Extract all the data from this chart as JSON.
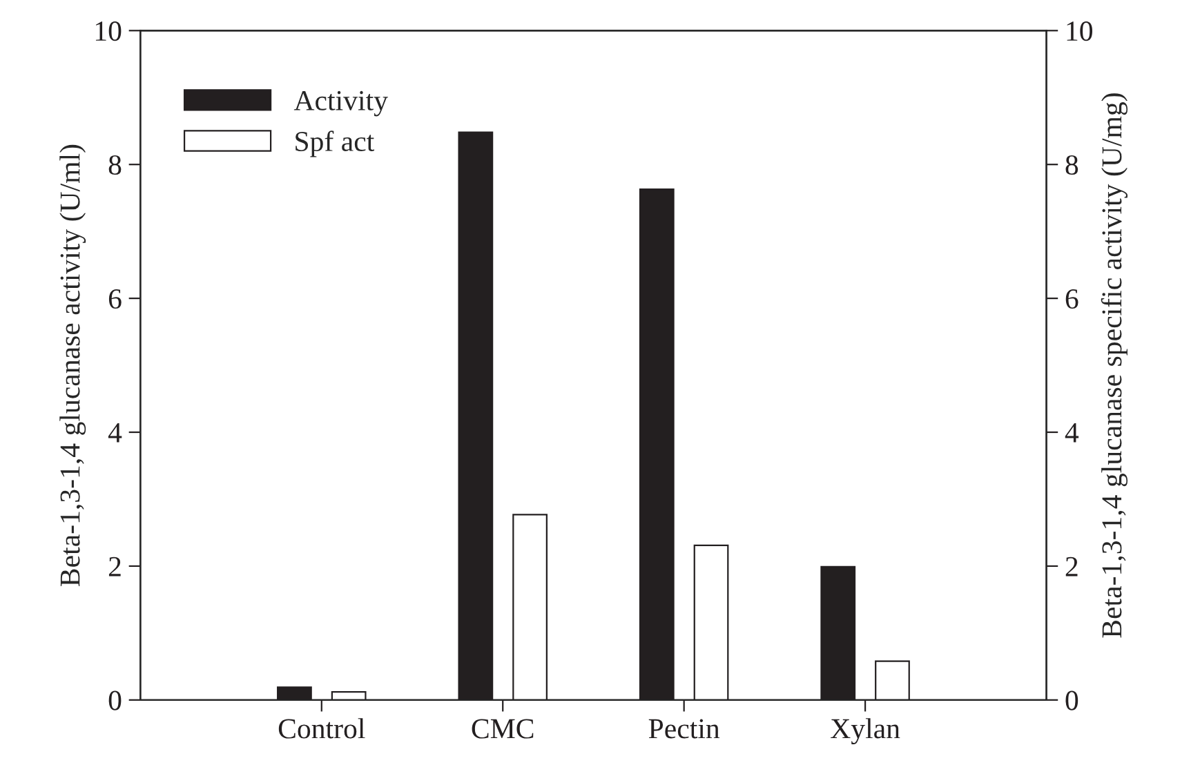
{
  "chart_data": {
    "type": "bar",
    "ylabel": "Beta-1,3-1,4 glucanase activity (U/ml)",
    "y2label": "Beta-1,3-1,4 glucanase specific activity (U/mg)",
    "categories": [
      "Control",
      "CMC",
      "Pectin",
      "Xylan"
    ],
    "series": [
      {
        "name": "Activity",
        "color": "#231f20",
        "values": [
          0.19,
          8.48,
          7.63,
          1.99
        ]
      },
      {
        "name": "Spf act",
        "color": "#ffffff",
        "axis": "y2",
        "values": [
          0.12,
          2.77,
          2.31,
          0.58
        ]
      }
    ],
    "ylim": [
      0,
      10
    ],
    "yticks": [
      0,
      2,
      4,
      6,
      8,
      10
    ],
    "y2lim": [
      0,
      10
    ],
    "y2ticks": [
      0,
      2,
      4,
      6,
      8,
      10
    ],
    "legend": "top left",
    "grid": false
  }
}
